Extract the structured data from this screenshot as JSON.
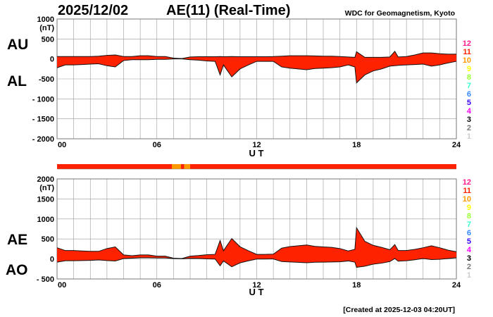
{
  "header": {
    "date": "2025/12/02",
    "title": "AE(11) (Real-Time)",
    "source": "WDC for Geomagnetism, Kyoto"
  },
  "footer": {
    "created": "[Created at 2025-12-03 04:20UT]"
  },
  "legend": {
    "labels": [
      "12",
      "11",
      "10",
      "9",
      "8",
      "7",
      "6",
      "5",
      "4",
      "3",
      "2",
      "1"
    ],
    "colors": [
      "#ff1a8c",
      "#ff2200",
      "#ff9900",
      "#ffff00",
      "#99ff33",
      "#33ffcc",
      "#3388ff",
      "#3300ff",
      "#ff00ff",
      "#000000",
      "#777777",
      "#cccccc"
    ]
  },
  "chart_data": [
    {
      "type": "area",
      "panel": "top",
      "series_labels": [
        "AU",
        "AL"
      ],
      "unit": "(nT)",
      "xlabel": "U T",
      "xlim": [
        0,
        24
      ],
      "ylim": [
        -2000,
        1000
      ],
      "xticks": [
        "00",
        "06",
        "12",
        "18",
        "24"
      ],
      "yticks": [
        "1000",
        "500",
        "0",
        "-500",
        "- 1000",
        "- 1500",
        "- 2000"
      ],
      "grid": true,
      "fill_color": "#ff2200",
      "x": [
        0,
        0.5,
        1,
        1.5,
        2,
        2.5,
        3,
        3.5,
        4,
        4.5,
        5,
        5.5,
        6,
        6.5,
        7,
        7.5,
        8,
        8.5,
        9,
        9.5,
        9.8,
        10,
        10.5,
        11,
        11.5,
        12,
        12.5,
        13,
        13.5,
        14,
        14.5,
        15,
        15.5,
        16,
        16.5,
        17,
        17.5,
        17.9,
        18,
        18.5,
        19,
        19.5,
        20,
        20.3,
        20.5,
        21,
        21.5,
        22,
        22.5,
        23,
        23.5,
        24
      ],
      "series": [
        {
          "name": "AU",
          "values": [
            60,
            60,
            60,
            60,
            60,
            70,
            90,
            100,
            60,
            60,
            80,
            80,
            60,
            60,
            20,
            10,
            50,
            55,
            55,
            55,
            60,
            55,
            60,
            55,
            55,
            55,
            55,
            60,
            70,
            80,
            80,
            80,
            75,
            70,
            70,
            60,
            50,
            40,
            180,
            40,
            40,
            40,
            50,
            190,
            50,
            60,
            100,
            150,
            150,
            130,
            120,
            120
          ]
        },
        {
          "name": "AL",
          "values": [
            -220,
            -150,
            -150,
            -140,
            -130,
            -120,
            -170,
            -200,
            -40,
            -20,
            -20,
            -20,
            -10,
            -10,
            0,
            0,
            -20,
            -30,
            -50,
            -60,
            -400,
            -150,
            -450,
            -250,
            -150,
            -60,
            -60,
            -60,
            -200,
            -230,
            -250,
            -270,
            -240,
            -230,
            -220,
            -200,
            -150,
            -200,
            -600,
            -400,
            -300,
            -250,
            -180,
            -170,
            -160,
            -150,
            -140,
            -130,
            -180,
            -150,
            -100,
            -60
          ]
        }
      ]
    },
    {
      "type": "area",
      "panel": "bottom",
      "series_labels": [
        "AE",
        "AO"
      ],
      "unit": "(nT)",
      "xlabel": "U T",
      "xlim": [
        0,
        24
      ],
      "ylim": [
        -500,
        2000
      ],
      "xticks": [
        "00",
        "06",
        "12",
        "18",
        "24"
      ],
      "yticks": [
        "2000",
        "1500",
        "1000",
        "500",
        "0",
        "- 500"
      ],
      "grid": true,
      "fill_color": "#ff2200",
      "x": [
        0,
        0.5,
        1,
        1.5,
        2,
        2.5,
        3,
        3.5,
        4,
        4.5,
        5,
        5.5,
        6,
        6.5,
        7,
        7.5,
        8,
        8.5,
        9,
        9.5,
        9.8,
        10,
        10.5,
        11,
        11.5,
        12,
        12.5,
        13,
        13.5,
        14,
        14.5,
        15,
        15.5,
        16,
        16.5,
        17,
        17.5,
        17.9,
        18,
        18.5,
        19,
        19.5,
        20,
        20.3,
        20.5,
        21,
        21.5,
        22,
        22.5,
        23,
        23.5,
        24
      ],
      "series": [
        {
          "name": "AE",
          "values": [
            280,
            210,
            210,
            200,
            190,
            190,
            260,
            300,
            100,
            80,
            100,
            100,
            70,
            70,
            20,
            10,
            70,
            85,
            105,
            115,
            460,
            205,
            510,
            305,
            205,
            115,
            115,
            120,
            270,
            310,
            330,
            350,
            315,
            300,
            290,
            260,
            200,
            240,
            780,
            440,
            340,
            290,
            230,
            360,
            210,
            210,
            240,
            280,
            330,
            280,
            220,
            180
          ]
        },
        {
          "name": "AO",
          "values": [
            -80,
            -45,
            -45,
            -40,
            -35,
            -25,
            -40,
            -50,
            10,
            20,
            30,
            30,
            25,
            25,
            10,
            5,
            15,
            12.5,
            2.5,
            -2.5,
            -170,
            -47.5,
            -195,
            -97.5,
            -47.5,
            -2.5,
            -2.5,
            0,
            -65,
            -75,
            -85,
            -95,
            -82.5,
            -80,
            -75,
            -70,
            -50,
            -80,
            -210,
            -180,
            -130,
            -105,
            -65,
            10,
            -55,
            -45,
            -20,
            10,
            -15,
            -10,
            10,
            30
          ]
        }
      ]
    },
    {
      "type": "bar",
      "panel": "station-count-bar",
      "segments": [
        {
          "start": 0,
          "end": 6.9,
          "stations": 11
        },
        {
          "start": 6.9,
          "end": 7.45,
          "stations": 10
        },
        {
          "start": 7.45,
          "end": 7.65,
          "stations": 11
        },
        {
          "start": 7.65,
          "end": 8.0,
          "stations": 10
        },
        {
          "start": 8.0,
          "end": 24,
          "stations": 11
        }
      ]
    }
  ]
}
